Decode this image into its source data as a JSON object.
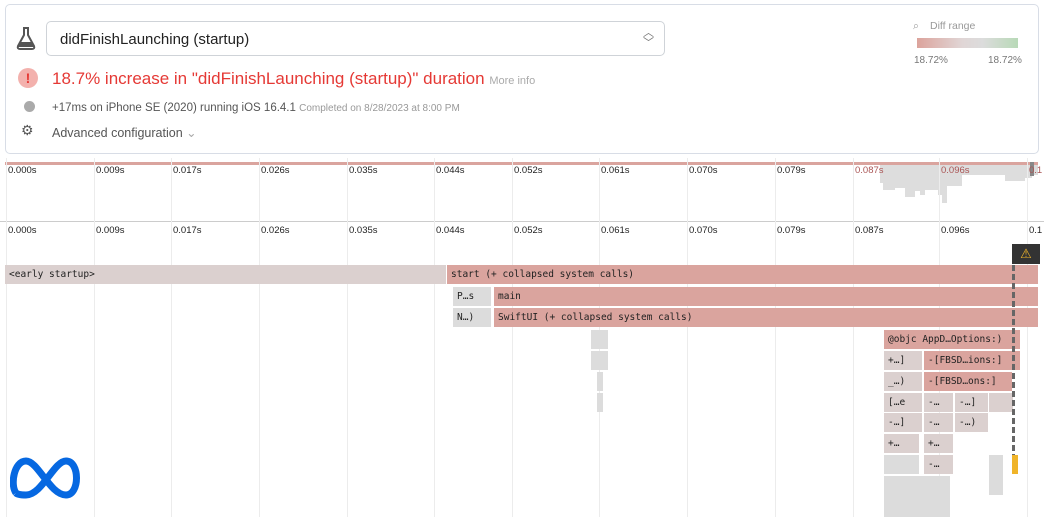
{
  "header": {
    "selected_test": "didFinishLaunching (startup)",
    "alert": "18.7% increase in \"didFinishLaunching (startup)\" duration",
    "more_info": "More info",
    "run_info": "+17ms on iPhone SE (2020) running iOS 16.4.1",
    "completed": "Completed on 8/28/2023 at 8:00 PM",
    "advanced": "Advanced configuration"
  },
  "diff_range": {
    "label": "Diff range",
    "min": "18.72%",
    "max": "18.72%",
    "colors": [
      "#dca39c",
      "#dcdcdc",
      "#b8d9b7"
    ]
  },
  "ticks": [
    "0.000s",
    "0.009s",
    "0.017s",
    "0.026s",
    "0.035s",
    "0.044s",
    "0.052s",
    "0.061s",
    "0.070s",
    "0.079s",
    "0.087s",
    "0.096s",
    "0.1"
  ],
  "frames": {
    "early": "<early startup>",
    "start": "start (+ collapsed system calls)",
    "ps": "P…s",
    "main": "main",
    "n": "N…)",
    "swiftui": "SwiftUI (+ collapsed system calls)",
    "objc": "@objc AppD…Options:)",
    "r1a": "+…]",
    "r1b": "-[FBSD…ions:]",
    "r2a": "_…)",
    "r2b": "-[FBSD…ons:]",
    "r3a": "[…e",
    "r3b": "-…",
    "r3c": "-…]",
    "r4a": "-…]",
    "r4b": "-…",
    "r4c": "-…)",
    "r5a": "+…",
    "r5b": "+…",
    "r6b": "-…"
  },
  "colors": {
    "regression": "#daa49e",
    "neutral": "#dbd0cf",
    "alert": "#e53935",
    "brand": "#0668e1"
  }
}
